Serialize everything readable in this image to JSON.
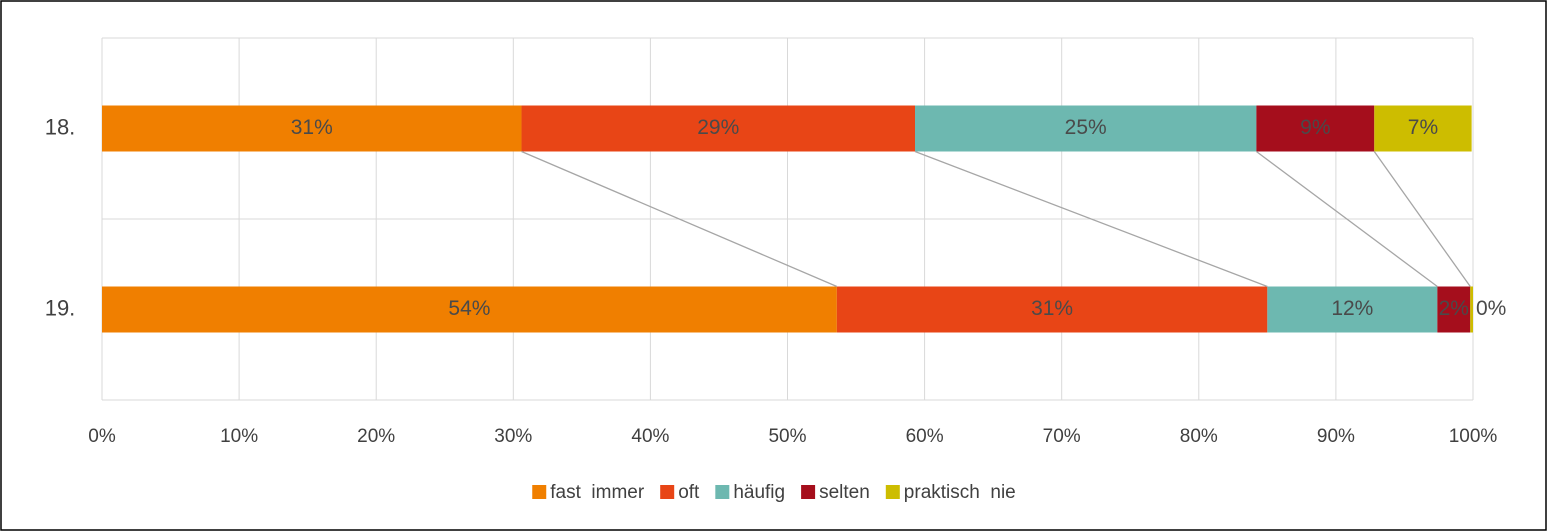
{
  "chart_data": {
    "type": "stacked_barh",
    "categories": [
      "18.",
      "19."
    ],
    "series": [
      {
        "name": "fast  immer",
        "color": "#f07f00",
        "values": [
          30.6,
          53.6
        ],
        "value_labels": [
          "31%",
          "54%"
        ]
      },
      {
        "name": "oft",
        "color": "#e84516",
        "values": [
          28.7,
          31.4
        ],
        "value_labels": [
          "29%",
          "31%"
        ]
      },
      {
        "name": "häufig",
        "color": "#6db8b0",
        "values": [
          24.9,
          12.4
        ],
        "value_labels": [
          "25%",
          "12%"
        ]
      },
      {
        "name": "selten",
        "color": "#a50e1c",
        "values": [
          8.6,
          2.4
        ],
        "value_labels": [
          "9%",
          "2%"
        ]
      },
      {
        "name": "praktisch  nie",
        "color": "#cdbd00",
        "values": [
          7.1,
          0.2
        ],
        "value_labels": [
          "7%",
          "0%"
        ]
      }
    ],
    "xlim": [
      0,
      100
    ],
    "xticks": [
      {
        "value": 0,
        "label": "0%"
      },
      {
        "value": 10,
        "label": "10%"
      },
      {
        "value": 20,
        "label": "20%"
      },
      {
        "value": 30,
        "label": "30%"
      },
      {
        "value": 40,
        "label": "40%"
      },
      {
        "value": 50,
        "label": "50%"
      },
      {
        "value": 60,
        "label": "60%"
      },
      {
        "value": 70,
        "label": "70%"
      },
      {
        "value": 80,
        "label": "80%"
      },
      {
        "value": 90,
        "label": "90%"
      },
      {
        "value": 100,
        "label": "100%"
      }
    ],
    "grid": true,
    "legend": "bottom"
  }
}
